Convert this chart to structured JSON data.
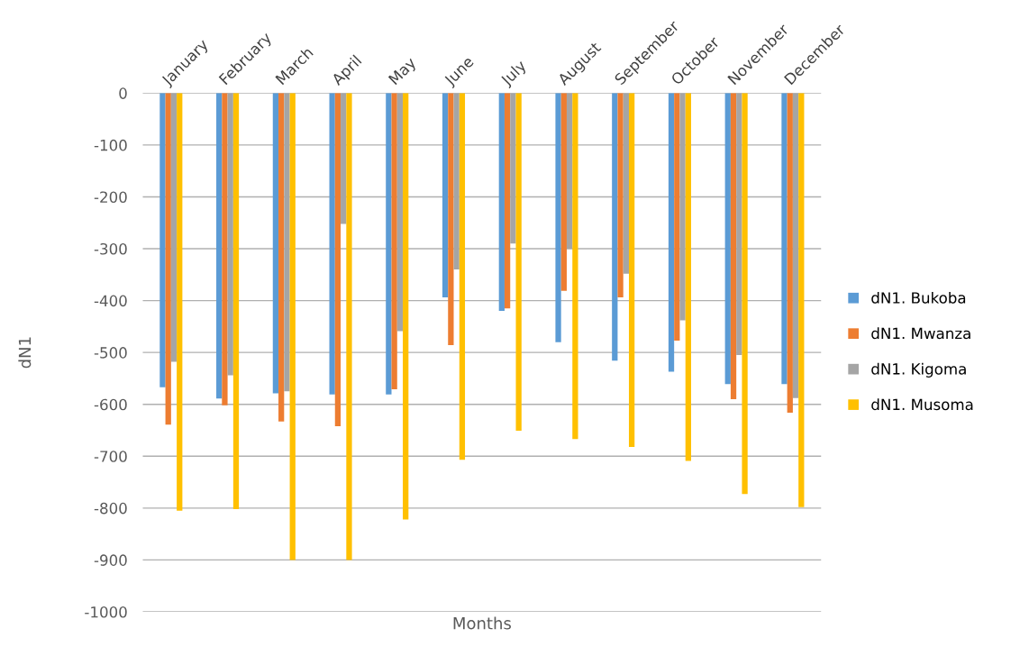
{
  "chart_data": {
    "type": "bar",
    "xlabel": "Months",
    "ylabel": "dN1",
    "categories": [
      "January",
      "February",
      "March",
      "April",
      "May",
      "June",
      "July",
      "August",
      "September",
      "October",
      "November",
      "December"
    ],
    "series": [
      {
        "name": "dN1. Bukoba",
        "color": "#5b9bd5",
        "values": [
          -567,
          -589,
          -579,
          -581,
          -581,
          -394,
          -420,
          -480,
          -516,
          -537,
          -561,
          -561
        ]
      },
      {
        "name": "dN1. Mwanza",
        "color": "#ed7d31",
        "values": [
          -639,
          -602,
          -633,
          -642,
          -571,
          -486,
          -415,
          -381,
          -394,
          -477,
          -590,
          -616
        ]
      },
      {
        "name": "dN1. Kigoma",
        "color": "#a5a5a5",
        "values": [
          -518,
          -544,
          -575,
          -252,
          -459,
          -340,
          -290,
          -300,
          -348,
          -438,
          -505,
          -588
        ]
      },
      {
        "name": "dN1. Musoma",
        "color": "#ffc000",
        "values": [
          -805,
          -802,
          -900,
          -900,
          -822,
          -707,
          -651,
          -667,
          -682,
          -709,
          -773,
          -798
        ]
      }
    ],
    "ylim": [
      -1000,
      0
    ],
    "yticks": [
      0,
      -100,
      -200,
      -300,
      -400,
      -500,
      -600,
      -700,
      -800,
      -900,
      -1000
    ],
    "grid": "y",
    "legend": "right"
  }
}
